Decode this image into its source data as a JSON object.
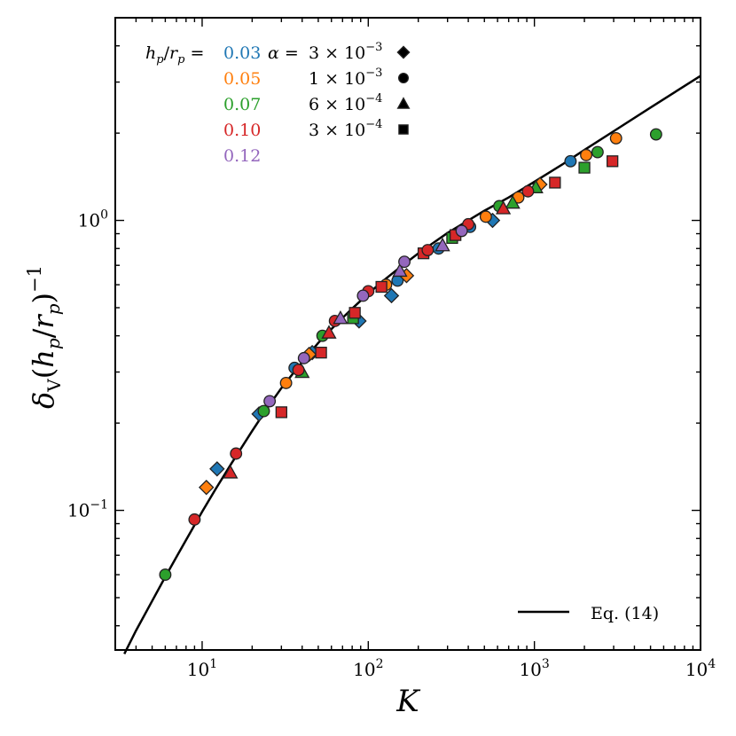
{
  "chart_data": {
    "type": "scatter",
    "x_scale": "log",
    "y_scale": "log",
    "xlim": [
      3,
      10000
    ],
    "ylim": [
      0.033,
      5
    ],
    "xlabel": "K",
    "ylabel": "δ_V(h_p/r_p)^-1",
    "x_ticks": [
      {
        "value": 10,
        "base": "10",
        "exp": "1"
      },
      {
        "value": 100,
        "base": "10",
        "exp": "2"
      },
      {
        "value": 1000,
        "base": "10",
        "exp": "3"
      },
      {
        "value": 10000,
        "base": "10",
        "exp": "4"
      }
    ],
    "y_ticks": [
      {
        "value": 0.1,
        "base": "10",
        "exp": "−1"
      },
      {
        "value": 1,
        "base": "10",
        "exp": "0"
      }
    ],
    "aspect_legend": {
      "label": "h_p/r_p =",
      "entries": [
        {
          "value": "0.03",
          "color": "#1f77b4"
        },
        {
          "value": "0.05",
          "color": "#ff7f0e"
        },
        {
          "value": "0.07",
          "color": "#2ca02c"
        },
        {
          "value": "0.10",
          "color": "#d62728"
        },
        {
          "value": "0.12",
          "color": "#9467bd"
        }
      ]
    },
    "alpha_legend": {
      "label": "α =",
      "entries": [
        {
          "mantissa": "3",
          "exp": "−3",
          "marker": "diamond"
        },
        {
          "mantissa": "1",
          "exp": "−3",
          "marker": "circle"
        },
        {
          "mantissa": "6",
          "exp": "−4",
          "marker": "triangle"
        },
        {
          "mantissa": "3",
          "exp": "−4",
          "marker": "square"
        }
      ]
    },
    "line_legend": {
      "label": "Eq. (14)",
      "placement": "bottom-right"
    },
    "curve": {
      "name": "Eq. (14)",
      "points": [
        [
          3.4,
          0.032
        ],
        [
          4,
          0.0385
        ],
        [
          5,
          0.0487
        ],
        [
          6,
          0.059
        ],
        [
          7,
          0.069
        ],
        [
          8,
          0.079
        ],
        [
          9,
          0.089
        ],
        [
          10,
          0.099
        ],
        [
          12,
          0.118
        ],
        [
          15,
          0.145
        ],
        [
          20,
          0.188
        ],
        [
          25,
          0.228
        ],
        [
          30,
          0.264
        ],
        [
          40,
          0.325
        ],
        [
          50,
          0.378
        ],
        [
          60,
          0.422
        ],
        [
          70,
          0.461
        ],
        [
          80,
          0.497
        ],
        [
          100,
          0.559
        ],
        [
          120,
          0.612
        ],
        [
          150,
          0.678
        ],
        [
          200,
          0.77
        ],
        [
          250,
          0.842
        ],
        [
          300,
          0.905
        ],
        [
          400,
          1.0
        ],
        [
          500,
          1.08
        ],
        [
          700,
          1.2
        ],
        [
          1000,
          1.36
        ],
        [
          1500,
          1.57
        ],
        [
          2000,
          1.75
        ],
        [
          3000,
          2.03
        ],
        [
          5000,
          2.45
        ],
        [
          7000,
          2.77
        ],
        [
          10000,
          3.15
        ]
      ]
    },
    "series": [
      {
        "name": "h_p/r_p=0.03",
        "color": "#1f77b4",
        "points": [
          {
            "x": 12.3,
            "y": 0.139,
            "marker": "diamond"
          },
          {
            "x": 22,
            "y": 0.215,
            "marker": "diamond"
          },
          {
            "x": 36,
            "y": 0.31,
            "marker": "circle"
          },
          {
            "x": 46,
            "y": 0.35,
            "marker": "diamond"
          },
          {
            "x": 88,
            "y": 0.45,
            "marker": "diamond"
          },
          {
            "x": 138,
            "y": 0.55,
            "marker": "diamond"
          },
          {
            "x": 150,
            "y": 0.62,
            "marker": "circle"
          },
          {
            "x": 265,
            "y": 0.8,
            "marker": "circle"
          },
          {
            "x": 410,
            "y": 0.95,
            "marker": "circle"
          },
          {
            "x": 560,
            "y": 1.0,
            "marker": "diamond"
          },
          {
            "x": 1650,
            "y": 1.6,
            "marker": "circle"
          }
        ]
      },
      {
        "name": "h_p/r_p=0.05",
        "color": "#ff7f0e",
        "points": [
          {
            "x": 10.6,
            "y": 0.12,
            "marker": "diamond"
          },
          {
            "x": 32,
            "y": 0.275,
            "marker": "circle"
          },
          {
            "x": 44,
            "y": 0.345,
            "marker": "diamond"
          },
          {
            "x": 128,
            "y": 0.6,
            "marker": "circle"
          },
          {
            "x": 170,
            "y": 0.645,
            "marker": "diamond"
          },
          {
            "x": 510,
            "y": 1.03,
            "marker": "circle"
          },
          {
            "x": 800,
            "y": 1.2,
            "marker": "circle"
          },
          {
            "x": 1080,
            "y": 1.33,
            "marker": "diamond"
          },
          {
            "x": 2050,
            "y": 1.68,
            "marker": "circle"
          },
          {
            "x": 3100,
            "y": 1.92,
            "marker": "circle"
          }
        ]
      },
      {
        "name": "h_p/r_p=0.07",
        "color": "#2ca02c",
        "points": [
          {
            "x": 6,
            "y": 0.06,
            "marker": "circle"
          },
          {
            "x": 23.5,
            "y": 0.22,
            "marker": "circle"
          },
          {
            "x": 40,
            "y": 0.3,
            "marker": "triangle"
          },
          {
            "x": 53,
            "y": 0.4,
            "marker": "circle"
          },
          {
            "x": 81,
            "y": 0.46,
            "marker": "square"
          },
          {
            "x": 320,
            "y": 0.87,
            "marker": "square"
          },
          {
            "x": 615,
            "y": 1.12,
            "marker": "circle"
          },
          {
            "x": 740,
            "y": 1.15,
            "marker": "triangle"
          },
          {
            "x": 1020,
            "y": 1.3,
            "marker": "triangle"
          },
          {
            "x": 2000,
            "y": 1.52,
            "marker": "square"
          },
          {
            "x": 2400,
            "y": 1.72,
            "marker": "circle"
          },
          {
            "x": 5400,
            "y": 1.98,
            "marker": "circle"
          }
        ]
      },
      {
        "name": "h_p/r_p=0.10",
        "color": "#d62728",
        "points": [
          {
            "x": 9,
            "y": 0.093,
            "marker": "circle"
          },
          {
            "x": 14.8,
            "y": 0.135,
            "marker": "triangle"
          },
          {
            "x": 16,
            "y": 0.157,
            "marker": "circle"
          },
          {
            "x": 30,
            "y": 0.218,
            "marker": "square"
          },
          {
            "x": 38,
            "y": 0.305,
            "marker": "circle"
          },
          {
            "x": 52,
            "y": 0.35,
            "marker": "square"
          },
          {
            "x": 58,
            "y": 0.41,
            "marker": "triangle"
          },
          {
            "x": 63,
            "y": 0.45,
            "marker": "circle"
          },
          {
            "x": 83,
            "y": 0.48,
            "marker": "square"
          },
          {
            "x": 100,
            "y": 0.57,
            "marker": "circle"
          },
          {
            "x": 120,
            "y": 0.59,
            "marker": "square"
          },
          {
            "x": 215,
            "y": 0.77,
            "marker": "square"
          },
          {
            "x": 228,
            "y": 0.79,
            "marker": "circle"
          },
          {
            "x": 335,
            "y": 0.89,
            "marker": "square"
          },
          {
            "x": 400,
            "y": 0.97,
            "marker": "circle"
          },
          {
            "x": 650,
            "y": 1.1,
            "marker": "triangle"
          },
          {
            "x": 915,
            "y": 1.26,
            "marker": "circle"
          },
          {
            "x": 1330,
            "y": 1.35,
            "marker": "square"
          },
          {
            "x": 2950,
            "y": 1.6,
            "marker": "square"
          }
        ]
      },
      {
        "name": "h_p/r_p=0.12",
        "color": "#9467bd",
        "points": [
          {
            "x": 25.5,
            "y": 0.238,
            "marker": "circle"
          },
          {
            "x": 41,
            "y": 0.335,
            "marker": "circle"
          },
          {
            "x": 68,
            "y": 0.46,
            "marker": "triangle"
          },
          {
            "x": 93,
            "y": 0.55,
            "marker": "circle"
          },
          {
            "x": 155,
            "y": 0.67,
            "marker": "triangle"
          },
          {
            "x": 165,
            "y": 0.72,
            "marker": "circle"
          },
          {
            "x": 280,
            "y": 0.82,
            "marker": "triangle"
          },
          {
            "x": 365,
            "y": 0.92,
            "marker": "circle"
          }
        ]
      }
    ]
  }
}
